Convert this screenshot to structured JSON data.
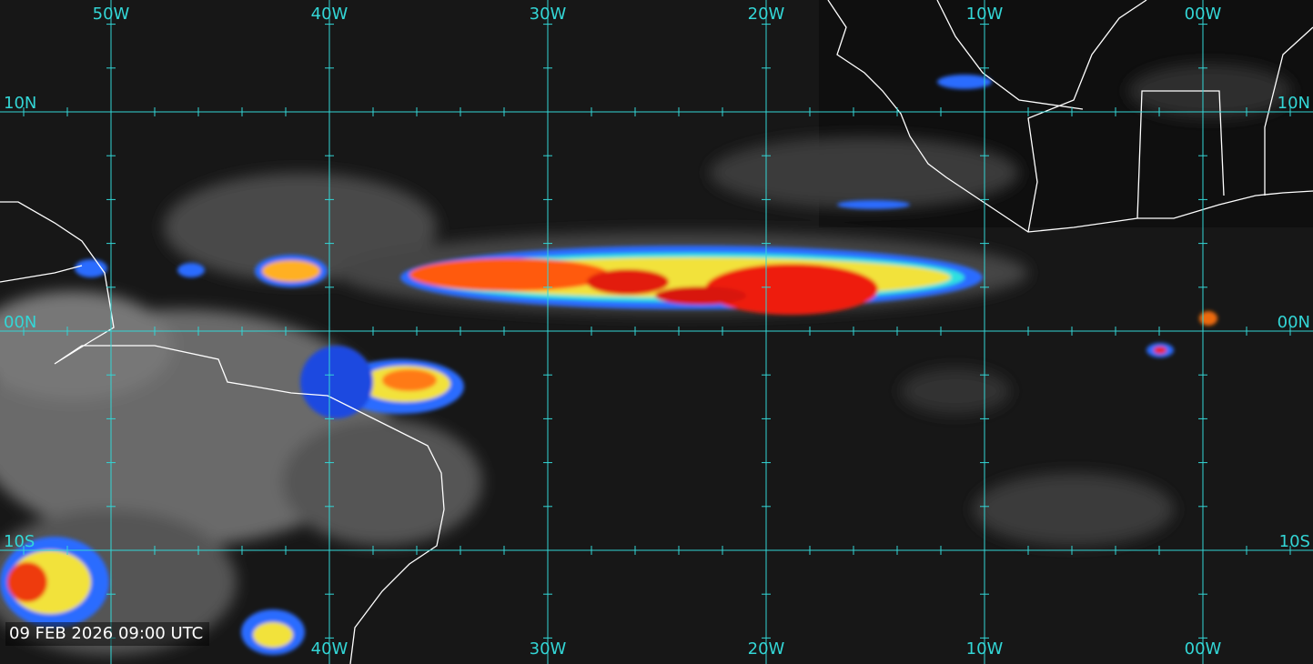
{
  "map": {
    "timestamp": "09 FEB 2026 09:00 UTC",
    "lon_lines": [
      {
        "value": -50,
        "label": "50W"
      },
      {
        "value": -40,
        "label": "40W"
      },
      {
        "value": -30,
        "label": "30W"
      },
      {
        "value": -20,
        "label": "20W"
      },
      {
        "value": -10,
        "label": "10W"
      },
      {
        "value": 0,
        "label": "00W"
      }
    ],
    "lat_lines": [
      {
        "value": 10,
        "label": "10N"
      },
      {
        "value": 0,
        "label": "00N"
      },
      {
        "value": -10,
        "label": "10S"
      }
    ],
    "grid_color": "#33d6d6"
  }
}
